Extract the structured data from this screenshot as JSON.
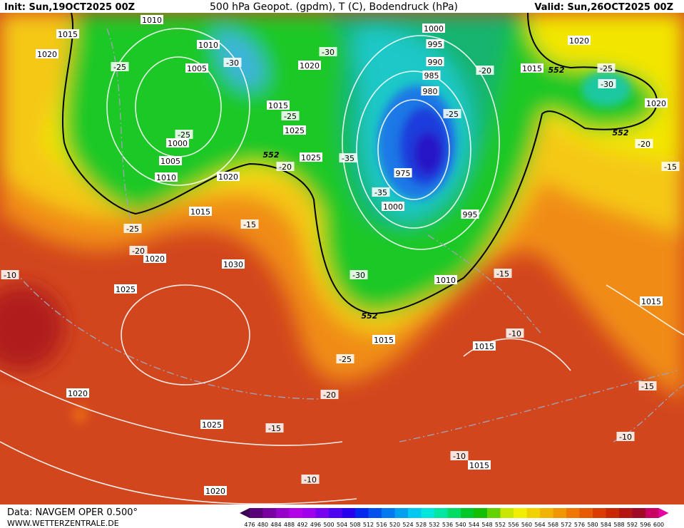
{
  "header": {
    "init": "Init: Sun,19OCT2025 00Z",
    "title": "500 hPa Geopot. (gpdm), T (C), Bodendruck (hPa)",
    "valid": "Valid: Sun,26OCT2025 00Z"
  },
  "footer": {
    "source": "Data: NAVGEM OPER 0.500°",
    "site": "WWW.WETTERZENTRALE.DE"
  },
  "colorbar": {
    "labels": [
      476,
      480,
      484,
      488,
      492,
      496,
      500,
      504,
      508,
      512,
      516,
      520,
      524,
      528,
      532,
      536,
      540,
      544,
      548,
      552,
      556,
      560,
      564,
      568,
      572,
      576,
      580,
      584,
      588,
      592,
      596,
      600
    ]
  },
  "isobar_labels": [
    "1010",
    "1015",
    "1010",
    "1020",
    "1005",
    "1020",
    "1015",
    "1025",
    "1000",
    "1005",
    "1010",
    "1020",
    "1025",
    "1015",
    "1020",
    "1025",
    "1030",
    "1000",
    "995",
    "990",
    "985",
    "980",
    "975",
    "1000",
    "995",
    "1010",
    "1015",
    "1020",
    "1020",
    "1015",
    "1015",
    "1015",
    "1020",
    "1025",
    "1020",
    "1015"
  ],
  "height_labels": [
    "552",
    "552",
    "552",
    "552"
  ],
  "temperature_labels": [
    "-25",
    "-30",
    "-30",
    "-20",
    "-25",
    "-30",
    "-25",
    "-25",
    "-25",
    "-35",
    "-20",
    "-20",
    "-15",
    "-35",
    "-25",
    "-15",
    "-20",
    "-30",
    "-15",
    "-10",
    "-10",
    "-25",
    "-20",
    "-15",
    "-15",
    "-10",
    "-10",
    "-10"
  ]
}
